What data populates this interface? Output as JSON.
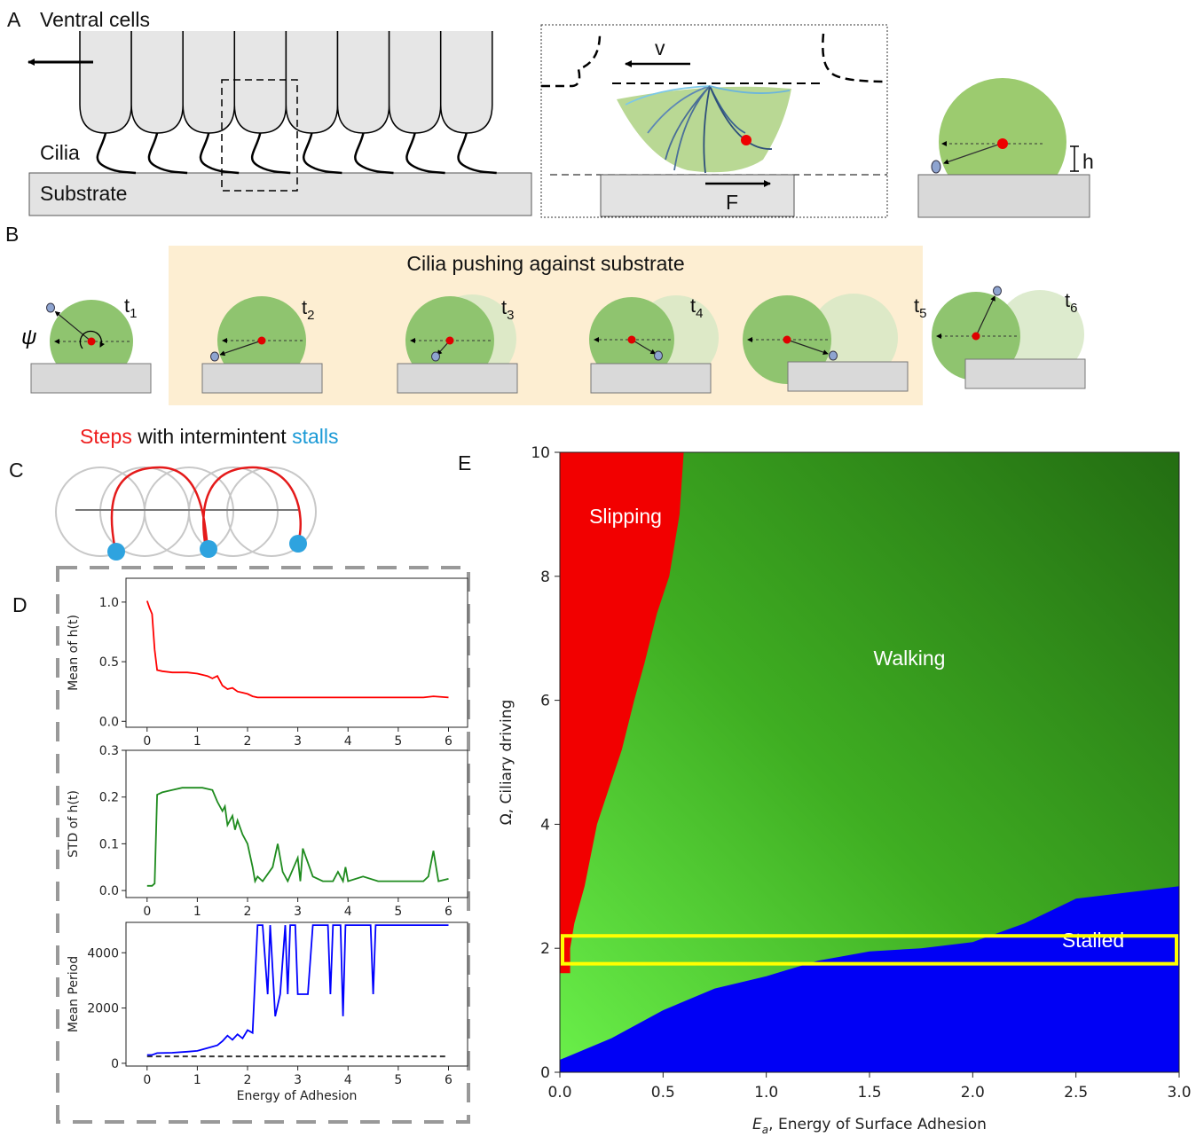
{
  "panel_a": {
    "label": "A",
    "cells_title": "Ventral cells",
    "cilia": "Cilia",
    "substrate": "Substrate",
    "velocity": "v",
    "force": "F",
    "height": "h"
  },
  "panel_b": {
    "label": "B",
    "banner": "Cilia pushing against substrate",
    "angle": "ψ",
    "time_symbol": "t",
    "time_indices": [
      "1",
      "2",
      "3",
      "4",
      "5",
      "6"
    ]
  },
  "panel_c": {
    "label": "C",
    "title": [
      "Steps",
      " with intermintent ",
      "stalls"
    ]
  },
  "panel_d": {
    "label": "D"
  },
  "panel_e": {
    "label": "E"
  },
  "chart_data": [
    {
      "type": "line",
      "ylabel": "Mean of h(t)",
      "color": "#ff0000",
      "x": [
        0,
        0.05,
        0.1,
        0.15,
        0.2,
        0.3,
        0.5,
        0.8,
        1.0,
        1.2,
        1.3,
        1.4,
        1.5,
        1.6,
        1.7,
        1.8,
        1.9,
        2.0,
        2.1,
        2.2,
        2.5,
        3,
        3.5,
        4,
        4.5,
        5,
        5.5,
        5.7,
        6
      ],
      "values": [
        1.01,
        0.95,
        0.9,
        0.6,
        0.43,
        0.42,
        0.41,
        0.41,
        0.4,
        0.38,
        0.36,
        0.38,
        0.3,
        0.27,
        0.28,
        0.25,
        0.24,
        0.23,
        0.21,
        0.2,
        0.2,
        0.2,
        0.2,
        0.2,
        0.2,
        0.2,
        0.2,
        0.21,
        0.2
      ],
      "xlim": [
        -0.42,
        6.38
      ],
      "ylim": [
        -0.05,
        1.2
      ],
      "xticks": [
        0,
        1,
        2,
        3,
        4,
        5,
        6
      ],
      "yticks": [
        {
          "value": 0,
          "label": "0.0"
        },
        {
          "value": 0.5,
          "label": "0.5"
        },
        {
          "value": 1,
          "label": "1.0"
        }
      ]
    },
    {
      "type": "line",
      "ylabel": "STD of h(t)",
      "color": "#1e8b1e",
      "x": [
        0,
        0.1,
        0.15,
        0.2,
        0.3,
        0.5,
        0.7,
        0.9,
        1.1,
        1.3,
        1.4,
        1.5,
        1.55,
        1.6,
        1.7,
        1.75,
        1.8,
        1.9,
        2.0,
        2.1,
        2.15,
        2.2,
        2.3,
        2.5,
        2.6,
        2.7,
        2.8,
        3.0,
        3.05,
        3.1,
        3.3,
        3.5,
        3.7,
        3.8,
        3.9,
        3.95,
        4.0,
        4.3,
        4.6,
        5.0,
        5.5,
        5.6,
        5.7,
        5.8,
        6.0
      ],
      "values": [
        0.01,
        0.01,
        0.015,
        0.205,
        0.21,
        0.215,
        0.22,
        0.22,
        0.22,
        0.215,
        0.19,
        0.17,
        0.18,
        0.14,
        0.16,
        0.13,
        0.15,
        0.12,
        0.1,
        0.05,
        0.02,
        0.03,
        0.02,
        0.05,
        0.1,
        0.04,
        0.02,
        0.07,
        0.02,
        0.09,
        0.03,
        0.02,
        0.02,
        0.04,
        0.02,
        0.05,
        0.02,
        0.03,
        0.02,
        0.02,
        0.02,
        0.03,
        0.085,
        0.02,
        0.025
      ],
      "xlim": [
        -0.42,
        6.38
      ],
      "ylim": [
        -0.015,
        0.3
      ],
      "xticks": [
        0,
        1,
        2,
        3,
        4,
        5,
        6
      ],
      "yticks": [
        {
          "value": 0,
          "label": "0.0"
        },
        {
          "value": 0.1,
          "label": "0.1"
        },
        {
          "value": 0.2,
          "label": "0.2"
        },
        {
          "value": 0.3,
          "label": "0.3"
        }
      ]
    },
    {
      "type": "line",
      "ylabel": "Mean Period",
      "xlabel": "Energy of Adhesion",
      "color": "#0000ff",
      "x": [
        0,
        0.1,
        0.2,
        0.5,
        0.8,
        1.0,
        1.2,
        1.4,
        1.5,
        1.6,
        1.7,
        1.8,
        1.9,
        2.0,
        2.1,
        2.2,
        2.3,
        2.4,
        2.45,
        2.55,
        2.65,
        2.75,
        2.8,
        2.85,
        2.95,
        3.0,
        3.1,
        3.2,
        3.3,
        3.35,
        3.6,
        3.65,
        3.7,
        3.85,
        3.9,
        3.95,
        4.45,
        4.5,
        4.55,
        6.0
      ],
      "values": [
        300,
        300,
        370,
        380,
        420,
        450,
        550,
        650,
        800,
        1000,
        850,
        1050,
        900,
        1200,
        1100,
        5000,
        5000,
        2500,
        5000,
        1700,
        2500,
        5000,
        2500,
        5000,
        5000,
        2500,
        2500,
        2500,
        5000,
        5000,
        5000,
        2500,
        5000,
        5000,
        1700,
        5000,
        5000,
        2500,
        5000,
        5000
      ],
      "reference_line": {
        "value": 250,
        "color": "#333333"
      },
      "xlim": [
        -0.42,
        6.38
      ],
      "ylim": [
        -100,
        5100
      ],
      "xticks": [
        0,
        1,
        2,
        3,
        4,
        5,
        6
      ],
      "yticks": [
        0,
        2000,
        4000
      ]
    },
    {
      "type": "phase",
      "xlabel": [
        "E",
        "a",
        ", Energy of Surface Adhesion"
      ],
      "ylabel": "Ω, Ciliary driving",
      "xlim": [
        0,
        3
      ],
      "ylim": [
        0,
        10
      ],
      "xticks": [
        {
          "value": 0,
          "label": "0.0"
        },
        {
          "value": 0.5,
          "label": "0.5"
        },
        {
          "value": 1,
          "label": "1.0"
        },
        {
          "value": 1.5,
          "label": "1.5"
        },
        {
          "value": 2,
          "label": "2.0"
        },
        {
          "value": 2.5,
          "label": "2.5"
        },
        {
          "value": 3,
          "label": "3.0"
        }
      ],
      "yticks": [
        0,
        2,
        4,
        6,
        8,
        10
      ],
      "regions": [
        {
          "name": "Slipping",
          "color": "#f20000",
          "x": [
            0.6,
            0.58,
            0.53,
            0.47,
            0.41,
            0.36,
            0.3,
            0.24,
            0.18,
            0.12,
            0.07,
            0.05,
            0.05,
            0
          ],
          "y": [
            10,
            9,
            8,
            7.4,
            6.6,
            6,
            5.2,
            4.6,
            4,
            3,
            2.4,
            2,
            1.6,
            1.6
          ]
        },
        {
          "name": "Walking",
          "color": "#236d12"
        },
        {
          "name": "Stalled",
          "color": "#0000f5",
          "x": [
            0,
            0.25,
            0.5,
            0.75,
            1,
            1.25,
            1.5,
            1.75,
            2,
            2.25,
            2.5,
            2.75,
            3
          ],
          "y": [
            0.2,
            0.55,
            1.0,
            1.35,
            1.55,
            1.8,
            1.95,
            2.0,
            2.1,
            2.4,
            2.8,
            2.9,
            3.0
          ]
        }
      ],
      "highlight": {
        "ylim": [
          1.75,
          2.2
        ],
        "color": "#ffff00"
      }
    }
  ]
}
